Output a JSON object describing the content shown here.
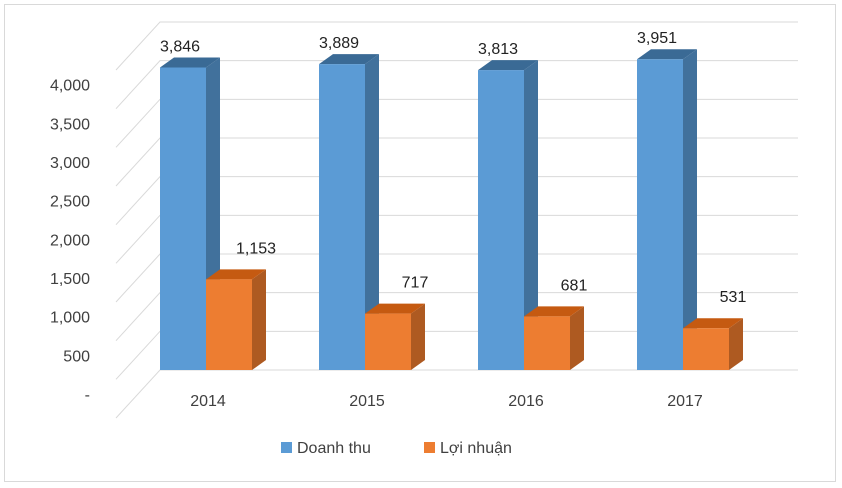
{
  "chart_data": {
    "type": "bar",
    "style": "3d-clustered-column",
    "categories": [
      "2014",
      "2015",
      "2016",
      "2017"
    ],
    "series": [
      {
        "name": "Doanh thu",
        "values": [
          3846,
          3889,
          3813,
          3951
        ],
        "color": "#5b9bd5",
        "side_color": "#41719c",
        "top_color": "#3a6a95"
      },
      {
        "name": "Lợi nhuận",
        "values": [
          1153,
          717,
          681,
          531
        ],
        "color": "#ed7d31",
        "side_color": "#ae5a21",
        "top_color": "#c55a11"
      }
    ],
    "data_labels": [
      [
        "3,846",
        "3,889",
        "3,813",
        "3,951"
      ],
      [
        "1,153",
        "717",
        "681",
        "531"
      ]
    ],
    "y_ticks": [
      {
        "value": 0,
        "label": "-"
      },
      {
        "value": 500,
        "label": "500"
      },
      {
        "value": 1000,
        "label": "1,000"
      },
      {
        "value": 1500,
        "label": "1,500"
      },
      {
        "value": 2000,
        "label": "2,000"
      },
      {
        "value": 2500,
        "label": "2,500"
      },
      {
        "value": 3000,
        "label": "3,000"
      },
      {
        "value": 3500,
        "label": "3,500"
      },
      {
        "value": 4000,
        "label": "4,000"
      },
      {
        "value": 4500,
        "label": ""
      }
    ],
    "ylim": [
      0,
      4500
    ],
    "grid": true,
    "gridline_color": "#d9d9d9",
    "legend": "bottom",
    "title": "",
    "xlabel": "",
    "ylabel": ""
  }
}
